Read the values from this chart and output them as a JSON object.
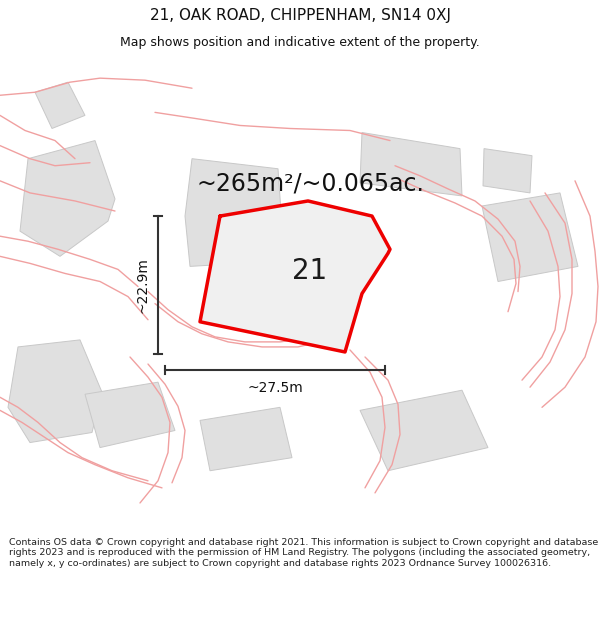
{
  "title": "21, OAK ROAD, CHIPPENHAM, SN14 0XJ",
  "subtitle": "Map shows position and indicative extent of the property.",
  "area_label": "~265m²/~0.065ac.",
  "property_number": "21",
  "dim_horizontal": "~27.5m",
  "dim_vertical": "~22.9m",
  "footer": "Contains OS data © Crown copyright and database right 2021. This information is subject to Crown copyright and database rights 2023 and is reproduced with the permission of HM Land Registry. The polygons (including the associated geometry, namely x, y co-ordinates) are subject to Crown copyright and database rights 2023 Ordnance Survey 100026316.",
  "bg_color": "#ffffff",
  "map_bg": "#f8f5f5",
  "property_color": "#ee0000",
  "outline_color": "#f0a0a0",
  "building_fill": "#e0e0e0",
  "building_edge": "#c8c8c8",
  "title_fontsize": 11,
  "subtitle_fontsize": 9,
  "area_fontsize": 17,
  "number_fontsize": 20,
  "dim_fontsize": 10,
  "footer_fontsize": 6.8
}
